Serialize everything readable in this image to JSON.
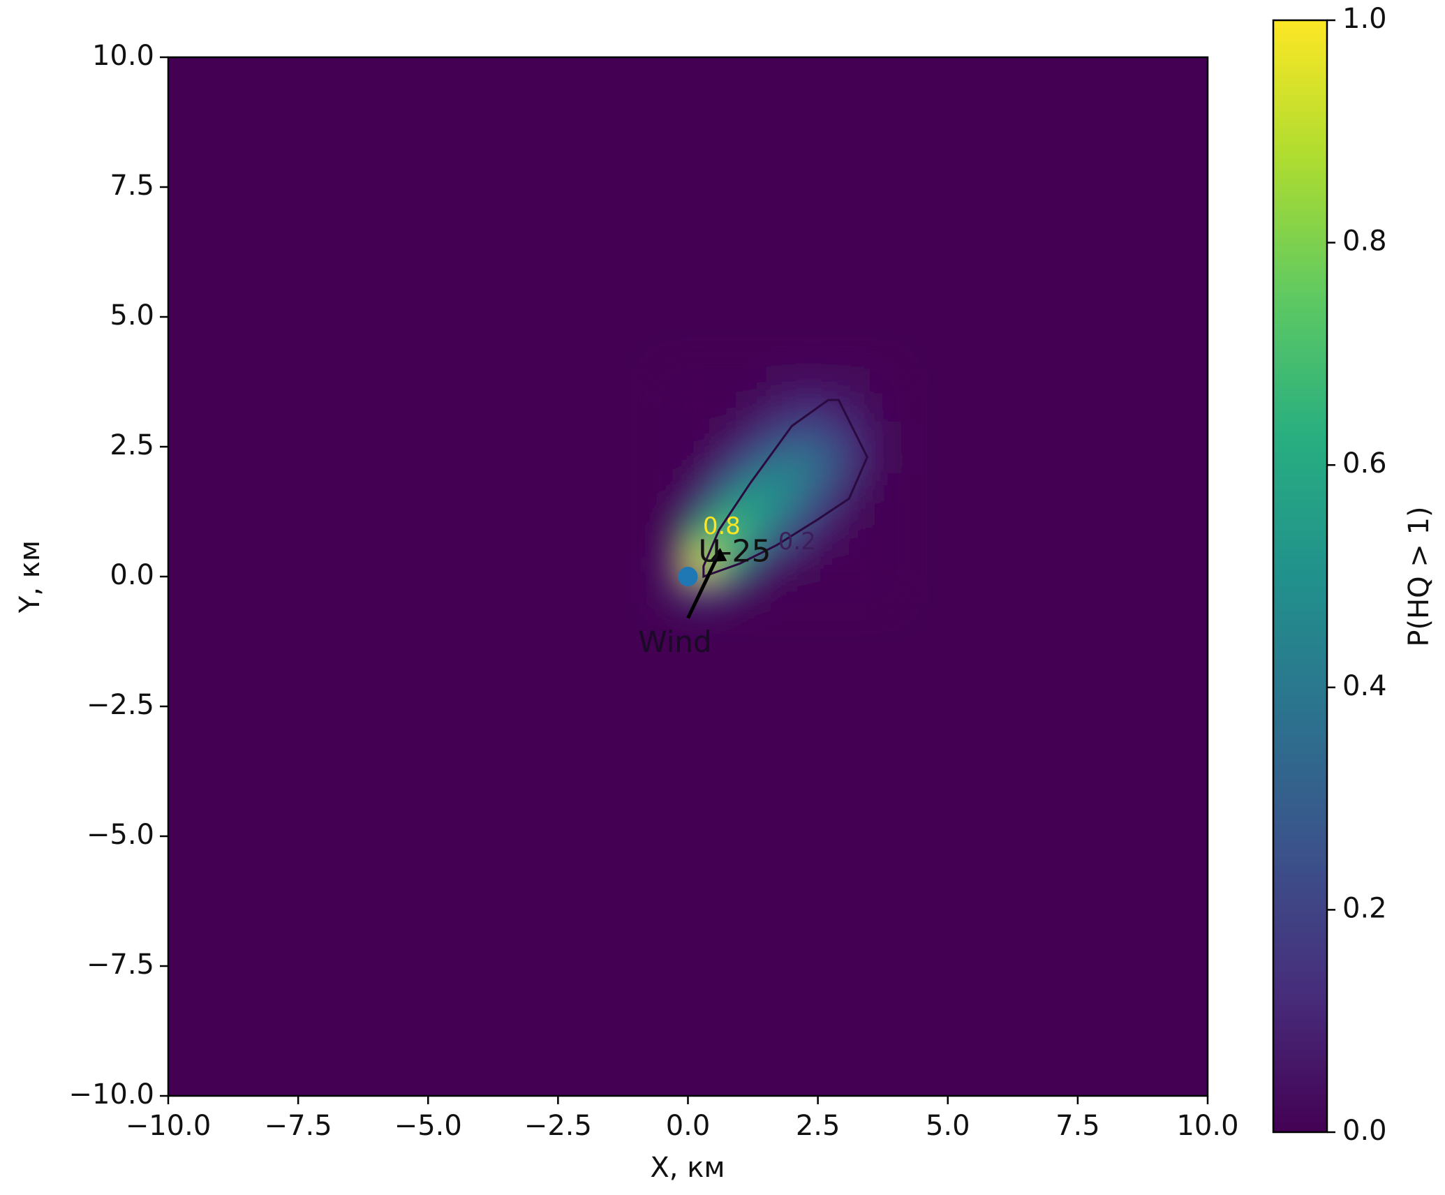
{
  "chart_data": {
    "type": "heatmap",
    "colormap": "viridis",
    "xlabel": "X, км",
    "ylabel": "Y, км",
    "colorbar_label": "P(HQ > 1)",
    "xlim": [
      -10,
      10
    ],
    "ylim": [
      -10,
      10
    ],
    "xticks": [
      {
        "value": -10,
        "label": "−10.0"
      },
      {
        "value": -7.5,
        "label": "−7.5"
      },
      {
        "value": -5,
        "label": "−5.0"
      },
      {
        "value": -2.5,
        "label": "−2.5"
      },
      {
        "value": 0,
        "label": "0.0"
      },
      {
        "value": 2.5,
        "label": "2.5"
      },
      {
        "value": 5,
        "label": "5.0"
      },
      {
        "value": 7.5,
        "label": "7.5"
      },
      {
        "value": 10,
        "label": "10.0"
      }
    ],
    "yticks": [
      {
        "value": -10,
        "label": "−10.0"
      },
      {
        "value": -7.5,
        "label": "−7.5"
      },
      {
        "value": -5,
        "label": "−5.0"
      },
      {
        "value": -2.5,
        "label": "−2.5"
      },
      {
        "value": 0,
        "label": "0.0"
      },
      {
        "value": 2.5,
        "label": "2.5"
      },
      {
        "value": 5,
        "label": "5.0"
      },
      {
        "value": 7.5,
        "label": "7.5"
      },
      {
        "value": 10,
        "label": "10.0"
      }
    ],
    "clim": [
      0,
      1
    ],
    "cticks": [
      {
        "value": 0,
        "label": "0.0"
      },
      {
        "value": 0.2,
        "label": "0.2"
      },
      {
        "value": 0.4,
        "label": "0.4"
      },
      {
        "value": 0.6,
        "label": "0.6"
      },
      {
        "value": 0.8,
        "label": "0.8"
      },
      {
        "value": 1,
        "label": "1.0"
      }
    ],
    "x": [
      -0.25,
      0.25,
      0.75,
      1.25,
      1.75,
      2.25,
      2.75,
      3.25,
      3.75
    ],
    "y": [
      -0.25,
      0.25,
      0.75,
      1.25,
      1.75,
      2.25,
      2.75,
      3.25,
      3.75
    ],
    "z": [
      [
        0.05,
        0.3,
        0.1,
        0.02,
        0,
        0,
        0,
        0,
        0
      ],
      [
        0.1,
        1.0,
        0.6,
        0.15,
        0.05,
        0.02,
        0,
        0,
        0
      ],
      [
        0.02,
        0.7,
        0.75,
        0.5,
        0.25,
        0.1,
        0.03,
        0,
        0
      ],
      [
        0,
        0.2,
        0.6,
        0.6,
        0.45,
        0.25,
        0.1,
        0.02,
        0
      ],
      [
        0,
        0.05,
        0.3,
        0.5,
        0.5,
        0.4,
        0.2,
        0.05,
        0
      ],
      [
        0,
        0,
        0.1,
        0.25,
        0.4,
        0.4,
        0.3,
        0.12,
        0.02
      ],
      [
        0,
        0,
        0.02,
        0.1,
        0.2,
        0.25,
        0.2,
        0.1,
        0.02
      ],
      [
        0,
        0,
        0,
        0.02,
        0.08,
        0.12,
        0.1,
        0.05,
        0
      ],
      [
        0,
        0,
        0,
        0,
        0.02,
        0.04,
        0.03,
        0.02,
        0
      ]
    ],
    "annotations": [
      "0.8",
      "0.2",
      "U-25",
      "Wind"
    ]
  }
}
